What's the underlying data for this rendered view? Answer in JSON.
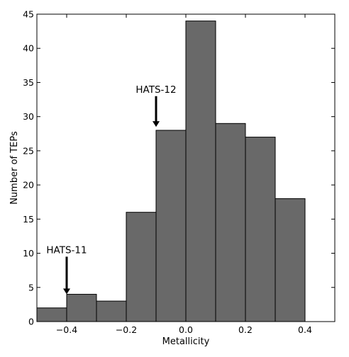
{
  "chart_data": {
    "type": "bar",
    "histogram": true,
    "bin_edges": [
      -0.5,
      -0.4,
      -0.3,
      -0.2,
      -0.1,
      0.0,
      0.1,
      0.2,
      0.3,
      0.4
    ],
    "values": [
      2,
      4,
      3,
      16,
      28,
      44,
      29,
      27,
      18
    ],
    "xlabel": "Metallicity",
    "ylabel": "Number of TEPs",
    "xlim": [
      -0.5,
      0.5
    ],
    "ylim": [
      0,
      45
    ],
    "xticks": [
      -0.4,
      -0.2,
      0.0,
      0.2,
      0.4
    ],
    "xtick_labels": [
      "−0.4",
      "−0.2",
      "0.0",
      "0.2",
      "0.4"
    ],
    "yticks": [
      0,
      5,
      10,
      15,
      20,
      25,
      30,
      35,
      40,
      45
    ],
    "ytick_labels": [
      "0",
      "5",
      "10",
      "15",
      "20",
      "25",
      "30",
      "35",
      "40",
      "45"
    ],
    "grid": false,
    "bar_color": "#696969",
    "annotations": [
      {
        "text": "HATS-11",
        "x": -0.4,
        "arrow_tip_y": 4,
        "arrow_tail_y": 9.5,
        "text_y": 10
      },
      {
        "text": "HATS-12",
        "x": -0.1,
        "arrow_tip_y": 28.5,
        "arrow_tail_y": 33,
        "text_y": 33.5
      }
    ]
  }
}
